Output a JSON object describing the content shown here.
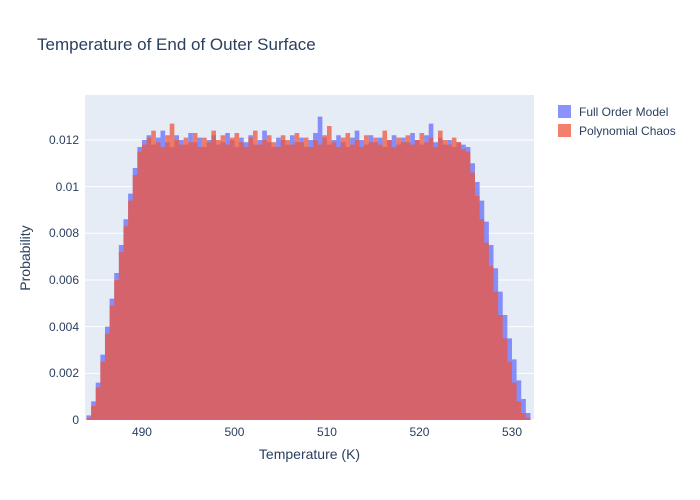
{
  "figure": {
    "background": "#ffffff",
    "plot_background": "#E5ECF6",
    "grid_color": "#ffffff",
    "text_color": "#2a3f5f"
  },
  "chart_data": {
    "type": "bar",
    "subtype": "overlaid-histogram",
    "title": "Temperature of End of Outer Surface",
    "xlabel": "Temperature (K)",
    "ylabel": "Probability",
    "xlim": [
      483.84,
      532.38
    ],
    "ylim": [
      0,
      0.013926
    ],
    "grid": "horizontal-only",
    "legend_position": "right-top-outside",
    "x_tick_values": [
      490,
      500,
      510,
      520,
      530
    ],
    "x_tick_labels": [
      "490",
      "500",
      "510",
      "520",
      "530"
    ],
    "y_tick_values": [
      0,
      0.002,
      0.004,
      0.006,
      0.008,
      0.01,
      0.012
    ],
    "y_tick_labels": [
      "0",
      "0.002",
      "0.004",
      "0.006",
      "0.008",
      "0.01",
      "0.012"
    ],
    "bin_start": 484.0,
    "bin_width": 0.5,
    "bar_opacity": 0.75,
    "series": [
      {
        "name": "Full Order Model",
        "color": "#636EFA",
        "values": [
          0.0002,
          0.0008,
          0.0016,
          0.0028,
          0.004,
          0.0052,
          0.0063,
          0.0075,
          0.0086,
          0.0097,
          0.0108,
          0.0117,
          0.012,
          0.0122,
          0.0118,
          0.0121,
          0.0124,
          0.0119,
          0.0117,
          0.0122,
          0.012,
          0.0118,
          0.0123,
          0.0119,
          0.0121,
          0.0117,
          0.012,
          0.0122,
          0.0118,
          0.0119,
          0.0123,
          0.012,
          0.0117,
          0.0121,
          0.0119,
          0.0122,
          0.0118,
          0.012,
          0.0124,
          0.0119,
          0.0117,
          0.0121,
          0.012,
          0.0118,
          0.0122,
          0.0119,
          0.0121,
          0.0117,
          0.012,
          0.0123,
          0.013,
          0.0121,
          0.0118,
          0.012,
          0.0122,
          0.0119,
          0.0117,
          0.0121,
          0.0124,
          0.012,
          0.0118,
          0.0122,
          0.0119,
          0.0121,
          0.0117,
          0.012,
          0.0122,
          0.0118,
          0.0121,
          0.0119,
          0.0123,
          0.012,
          0.0118,
          0.0122,
          0.0127,
          0.0119,
          0.0121,
          0.0118,
          0.012,
          0.0117,
          0.0119,
          0.0118,
          0.0117,
          0.011,
          0.0102,
          0.0094,
          0.0085,
          0.0075,
          0.0065,
          0.0055,
          0.0045,
          0.0035,
          0.0026,
          0.0017,
          0.0009,
          0.0003
        ]
      },
      {
        "name": "Polynomial Chaos",
        "color": "#EF553B",
        "values": [
          0.0001,
          0.0006,
          0.0014,
          0.0025,
          0.0037,
          0.0049,
          0.006,
          0.0072,
          0.0083,
          0.0094,
          0.0105,
          0.0115,
          0.0118,
          0.0121,
          0.0124,
          0.0119,
          0.0117,
          0.0122,
          0.0127,
          0.012,
          0.0118,
          0.0121,
          0.0119,
          0.0123,
          0.0117,
          0.0121,
          0.0119,
          0.0124,
          0.012,
          0.0122,
          0.0118,
          0.0121,
          0.0123,
          0.0119,
          0.0117,
          0.0121,
          0.0124,
          0.0118,
          0.012,
          0.0122,
          0.0119,
          0.0117,
          0.0122,
          0.012,
          0.0118,
          0.0123,
          0.0119,
          0.0121,
          0.0117,
          0.012,
          0.0118,
          0.0122,
          0.0126,
          0.0119,
          0.0117,
          0.0121,
          0.0123,
          0.0118,
          0.012,
          0.0117,
          0.0122,
          0.0119,
          0.0121,
          0.0118,
          0.0124,
          0.012,
          0.0117,
          0.0121,
          0.0119,
          0.0122,
          0.0118,
          0.012,
          0.0123,
          0.0119,
          0.0121,
          0.0117,
          0.0124,
          0.012,
          0.0118,
          0.0121,
          0.0119,
          0.0116,
          0.0115,
          0.0106,
          0.0096,
          0.0086,
          0.0076,
          0.0066,
          0.0055,
          0.0045,
          0.0035,
          0.0025,
          0.0016,
          0.0008,
          0.0003,
          0.0001
        ]
      }
    ]
  }
}
